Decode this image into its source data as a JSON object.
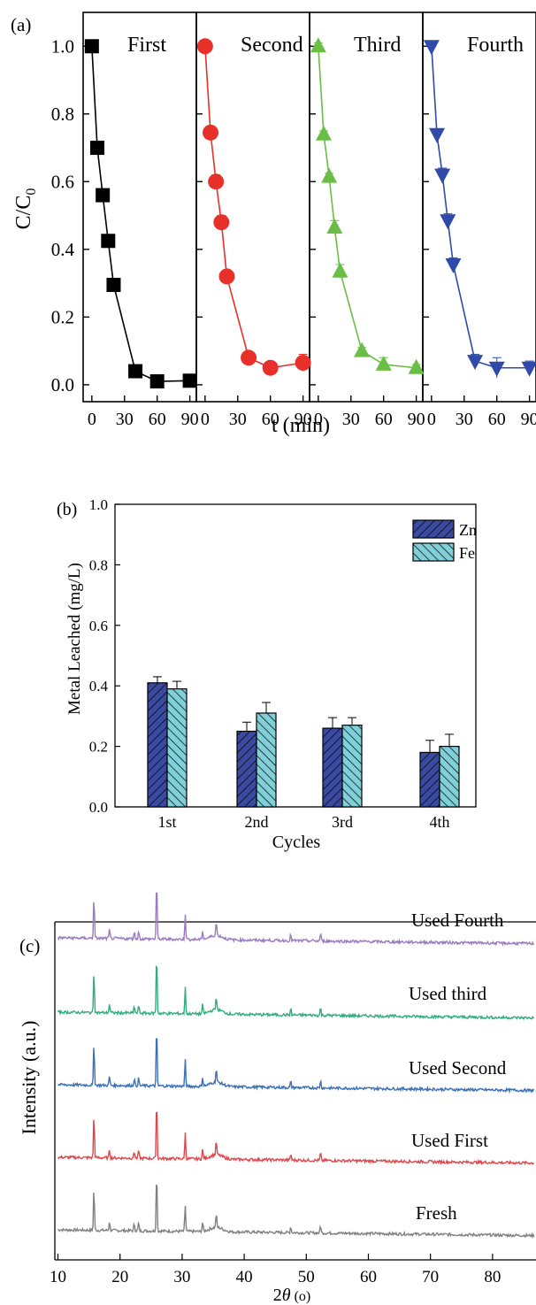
{
  "chart_data": [
    {
      "panel": "(a)",
      "type": "line",
      "ylabel": "C/C",
      "ylabel_sub": "0",
      "xlabel": "t (min)",
      "ylim": [
        -0.05,
        1.1
      ],
      "xlim": [
        -8,
        96
      ],
      "yticks": [
        "0.0",
        "0.2",
        "0.4",
        "0.6",
        "0.8",
        "1.0"
      ],
      "xticks": [
        "0",
        "30",
        "60",
        "90"
      ],
      "series": [
        {
          "name": "First",
          "color": "#000000",
          "marker": "square",
          "x": [
            0,
            5,
            10,
            15,
            20,
            40,
            60,
            90
          ],
          "y": [
            1.0,
            0.7,
            0.56,
            0.425,
            0.295,
            0.04,
            0.01,
            0.012
          ],
          "err": [
            0.01,
            0.01,
            0.01,
            0.01,
            0.01,
            0.01,
            0.01,
            0.01
          ]
        },
        {
          "name": "Second",
          "color": "#e8302a",
          "marker": "circle",
          "x": [
            0,
            5,
            10,
            15,
            20,
            40,
            60,
            90
          ],
          "y": [
            1.0,
            0.745,
            0.6,
            0.48,
            0.32,
            0.08,
            0.05,
            0.065
          ],
          "err": [
            0.01,
            0.01,
            0.02,
            0.02,
            0.01,
            0.01,
            0.01,
            0.025
          ]
        },
        {
          "name": "Third",
          "color": "#6abe45",
          "marker": "triangle-up",
          "x": [
            0,
            5,
            10,
            15,
            20,
            40,
            60,
            90
          ],
          "y": [
            1.0,
            0.74,
            0.615,
            0.465,
            0.335,
            0.1,
            0.06,
            0.05
          ],
          "err": [
            0.01,
            0.01,
            0.01,
            0.02,
            0.02,
            0.01,
            0.02,
            0.01
          ]
        },
        {
          "name": "Fourth",
          "color": "#2f4aa8",
          "marker": "triangle-down",
          "x": [
            0,
            5,
            10,
            15,
            20,
            40,
            60,
            90
          ],
          "y": [
            1.0,
            0.74,
            0.62,
            0.485,
            0.355,
            0.07,
            0.05,
            0.05
          ],
          "err": [
            0.01,
            0.01,
            0.02,
            0.02,
            0.02,
            0.02,
            0.03,
            0.02
          ]
        }
      ]
    },
    {
      "panel": "(b)",
      "type": "bar",
      "xlabel": "Cycles",
      "ylabel": "Metal Leached (mg/L)",
      "ylim": [
        0.0,
        1.0
      ],
      "yticks": [
        "0.0",
        "0.2",
        "0.4",
        "0.6",
        "0.8",
        "1.0"
      ],
      "categories": [
        "1st",
        "2nd",
        "3rd",
        "4th"
      ],
      "legend_position": "top-right",
      "series": [
        {
          "name": "Zn",
          "color": "#3a4aa0",
          "hatch": "diag-right",
          "values": [
            0.41,
            0.25,
            0.26,
            0.18
          ],
          "err": [
            0.02,
            0.03,
            0.035,
            0.04
          ]
        },
        {
          "name": "Fe",
          "color": "#7fd0d8",
          "hatch": "diag-left",
          "values": [
            0.39,
            0.31,
            0.27,
            0.2
          ],
          "err": [
            0.025,
            0.035,
            0.025,
            0.04
          ]
        }
      ]
    },
    {
      "panel": "(c)",
      "type": "line",
      "xlabel_prefix": "2",
      "xlabel_theta": "θ",
      "xlabel_suffix": " (o)",
      "ylabel": "Intensity (a.u.)",
      "xlim": [
        9.5,
        87
      ],
      "xticks": [
        "10",
        "20",
        "30",
        "40",
        "50",
        "60",
        "70",
        "80"
      ],
      "peaks_2theta": [
        15.8,
        18.3,
        22.3,
        23.0,
        25.9,
        30.5,
        33.3,
        35.5,
        47.5,
        52.3
      ],
      "series": [
        {
          "name": "Fresh",
          "color": "#808080"
        },
        {
          "name": "Used First",
          "color": "#e0474c"
        },
        {
          "name": "Used Second",
          "color": "#3b6fb6"
        },
        {
          "name": "Used third",
          "color": "#2fae7a"
        },
        {
          "name": "Used Fourth",
          "color": "#9b7bc0"
        }
      ]
    }
  ]
}
